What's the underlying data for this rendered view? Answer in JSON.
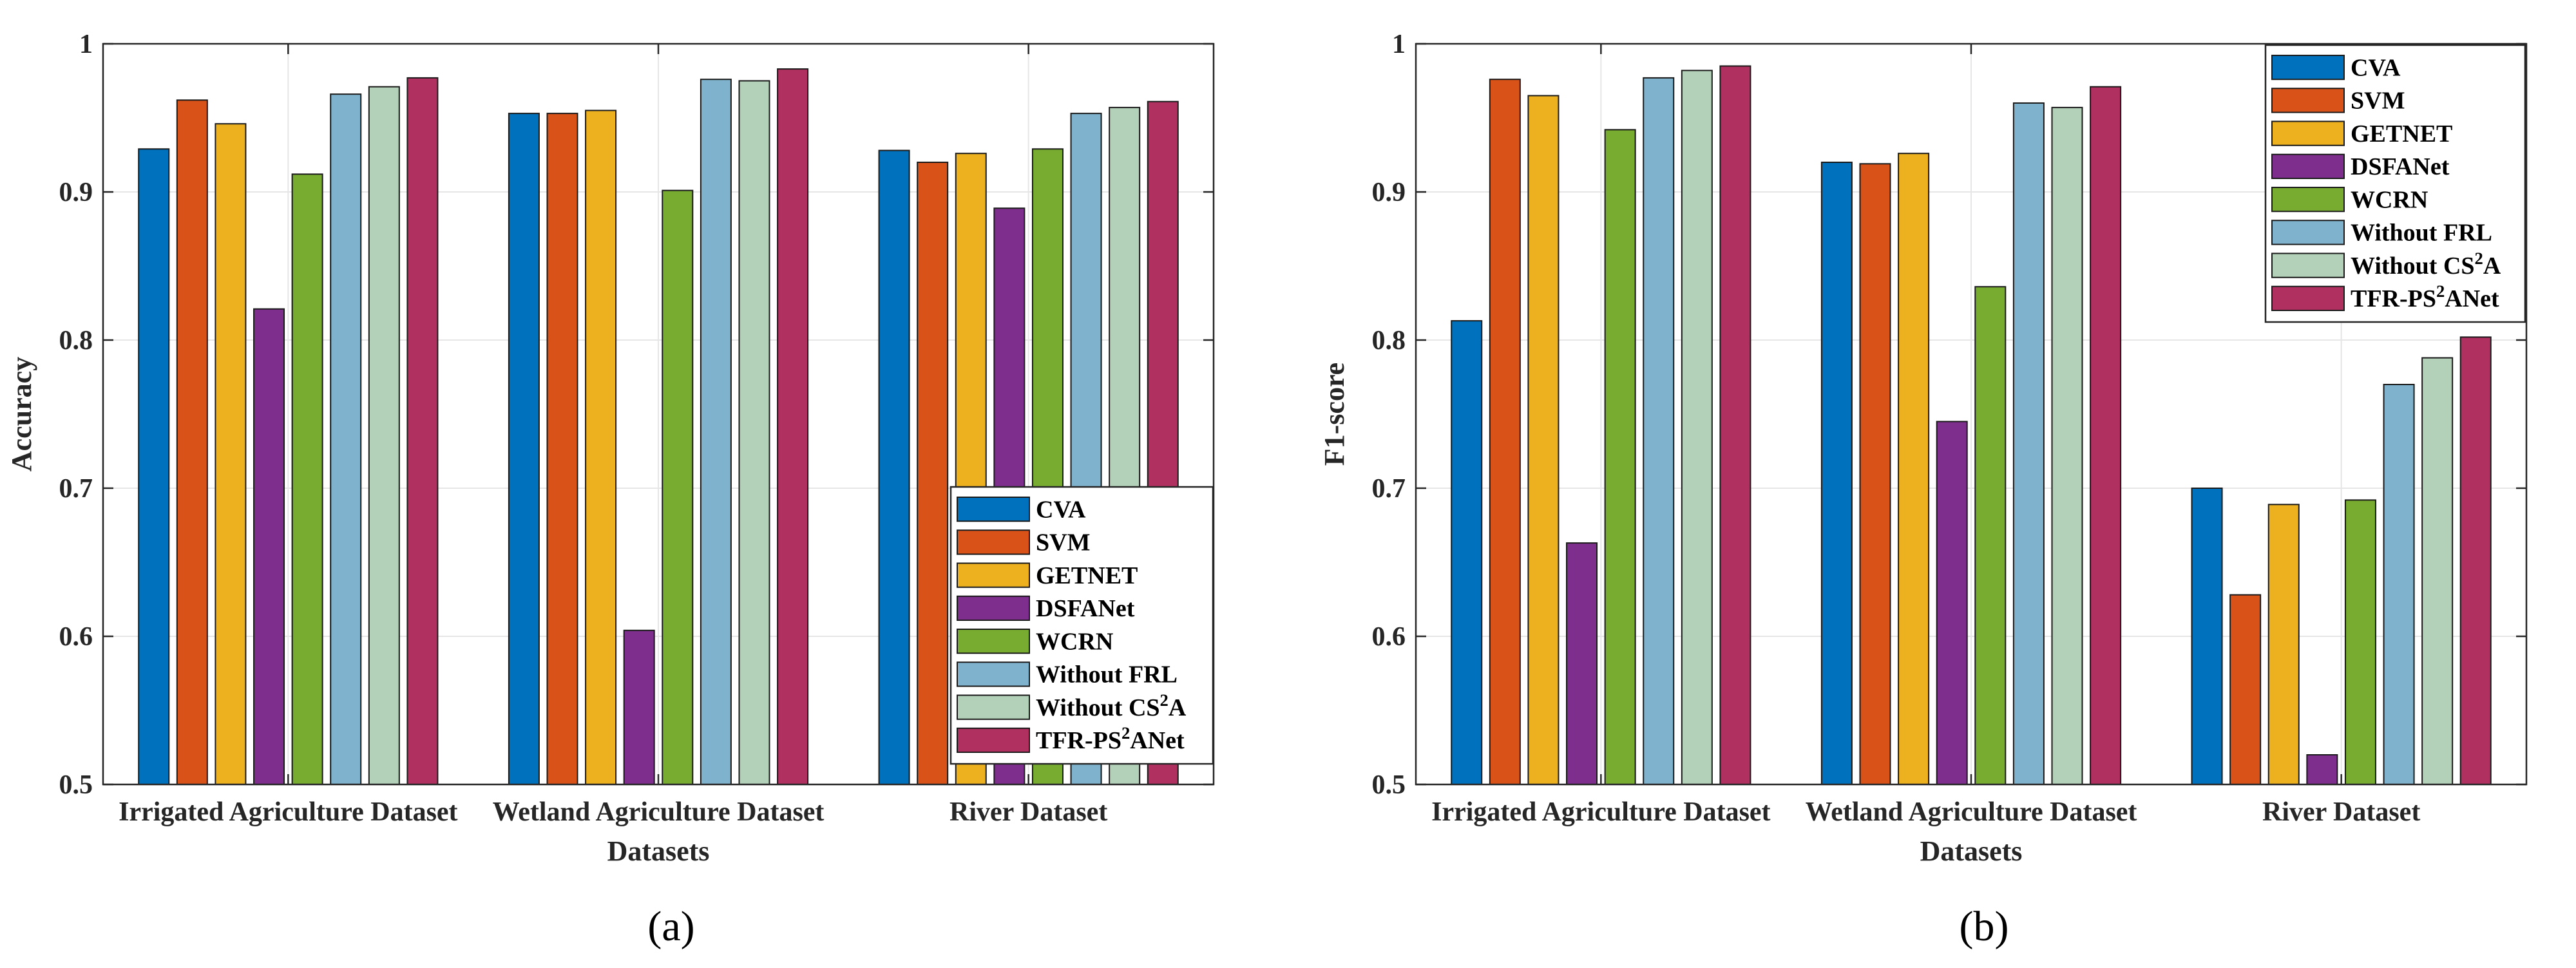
{
  "series_colors": [
    "#0072bd",
    "#d95319",
    "#edb120",
    "#7e2f8e",
    "#77ac30",
    "#7fb2cc",
    "#b3d1b8",
    "#b03060"
  ],
  "legend_entries": [
    "CVA",
    "SVM",
    "GETNET",
    "DSFANet",
    "WCRN",
    "Without FRL",
    "Without CS²A",
    "TFR-PS²ANet"
  ],
  "chart_data": [
    {
      "type": "bar",
      "panel_label": "(a)",
      "categories": [
        "Irrigated Agriculture Dataset",
        "Wetland Agriculture Dataset",
        "River Dataset"
      ],
      "xlabel": "Datasets",
      "ylabel": "Accuracy",
      "ylim": [
        0.5,
        1.0
      ],
      "yticks": [
        "0.5",
        "0.6",
        "0.7",
        "0.8",
        "0.9",
        "1"
      ],
      "grid": true,
      "legend_position": "bottom-right",
      "series": [
        {
          "name": "CVA",
          "values": [
            0.929,
            0.953,
            0.928
          ]
        },
        {
          "name": "SVM",
          "values": [
            0.962,
            0.953,
            0.92
          ]
        },
        {
          "name": "GETNET",
          "values": [
            0.946,
            0.955,
            0.926
          ]
        },
        {
          "name": "DSFANet",
          "values": [
            0.821,
            0.604,
            0.889
          ]
        },
        {
          "name": "WCRN",
          "values": [
            0.912,
            0.901,
            0.929
          ]
        },
        {
          "name": "Without FRL",
          "values": [
            0.966,
            0.976,
            0.953
          ]
        },
        {
          "name": "Without CS²A",
          "values": [
            0.971,
            0.975,
            0.957
          ]
        },
        {
          "name": "TFR-PS²ANet",
          "values": [
            0.977,
            0.983,
            0.961
          ]
        }
      ]
    },
    {
      "type": "bar",
      "panel_label": "(b)",
      "categories": [
        "Irrigated Agriculture Dataset",
        "Wetland Agriculture Dataset",
        "River Dataset"
      ],
      "xlabel": "Datasets",
      "ylabel": "F1-score",
      "ylim": [
        0.5,
        1.0
      ],
      "yticks": [
        "0.5",
        "0.6",
        "0.7",
        "0.8",
        "0.9",
        "1"
      ],
      "grid": true,
      "legend_position": "top-right",
      "series": [
        {
          "name": "CVA",
          "values": [
            0.813,
            0.92,
            0.7
          ]
        },
        {
          "name": "SVM",
          "values": [
            0.976,
            0.919,
            0.628
          ]
        },
        {
          "name": "GETNET",
          "values": [
            0.965,
            0.926,
            0.689
          ]
        },
        {
          "name": "DSFANet",
          "values": [
            0.663,
            0.745,
            0.52
          ]
        },
        {
          "name": "WCRN",
          "values": [
            0.942,
            0.836,
            0.692
          ]
        },
        {
          "name": "Without FRL",
          "values": [
            0.977,
            0.96,
            0.77
          ]
        },
        {
          "name": "Without CS²A",
          "values": [
            0.982,
            0.957,
            0.788
          ]
        },
        {
          "name": "TFR-PS²ANet",
          "values": [
            0.985,
            0.971,
            0.802
          ]
        }
      ]
    }
  ]
}
